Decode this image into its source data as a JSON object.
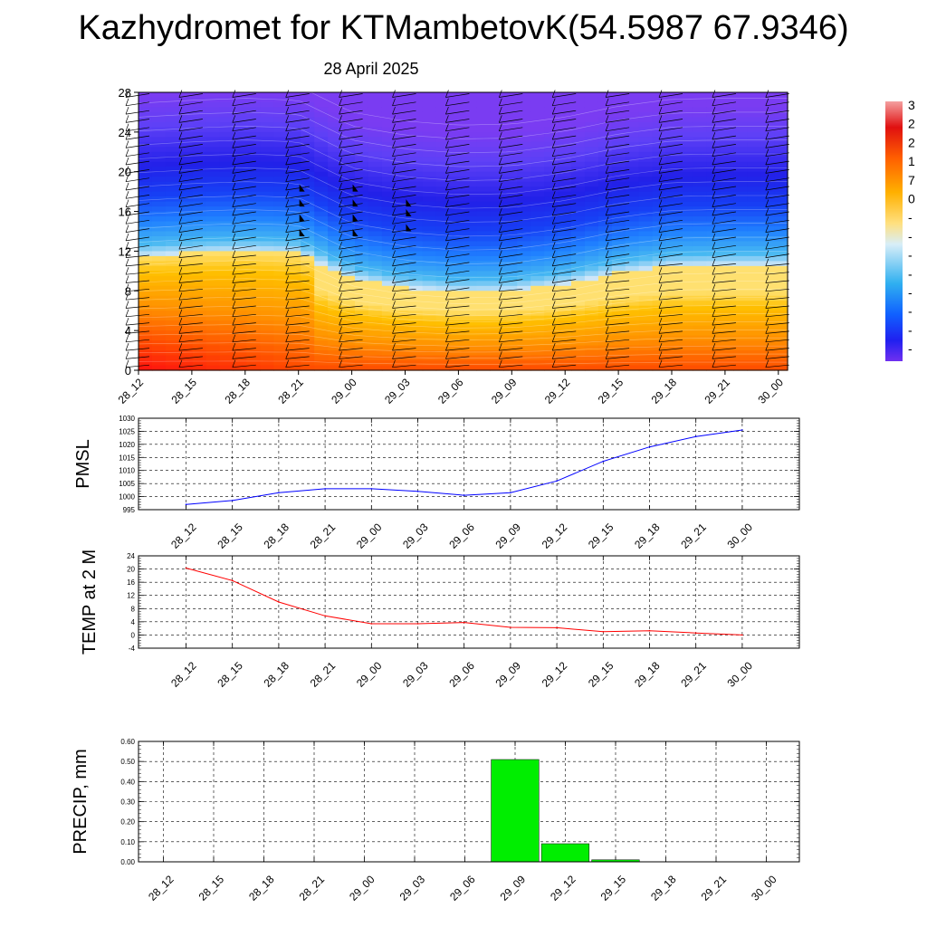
{
  "title": "Kazhydromet for KTMambetovK(54.5987 67.9346)",
  "subtitle": "28 April 2025",
  "colors": {
    "pmsl_line": "#0000ff",
    "temp_line": "#ff0000",
    "precip_bar": "#00ee00"
  },
  "chart_data": [
    {
      "type": "heatmap",
      "name": "cross-section",
      "x_tick_labels": [
        "28_12",
        "28_15",
        "28_18",
        "28_21",
        "29_00",
        "29_03",
        "29_06",
        "29_09",
        "29_12",
        "29_15",
        "29_18",
        "29_21",
        "30_00"
      ],
      "y_tick_labels": [
        "0",
        "4",
        "8",
        "12",
        "16",
        "20",
        "24",
        "28"
      ],
      "ylim": [
        0,
        28
      ],
      "freezing_level": [
        11.5,
        11.8,
        12.0,
        11.8,
        9.2,
        8.3,
        7.9,
        8.0,
        8.7,
        9.8,
        10.5,
        10.6,
        10.6
      ],
      "colorbar_labels": [
        "3",
        "2",
        "2",
        "1",
        "7",
        "0",
        "-",
        "-",
        "-",
        "-",
        "-",
        "-",
        "-",
        "-"
      ],
      "grid": false,
      "wind_barbs": true
    },
    {
      "type": "line",
      "name": "PMSL",
      "ylabel": "PMSL",
      "categories": [
        "28_12",
        "28_15",
        "28_18",
        "28_21",
        "29_00",
        "29_03",
        "29_06",
        "29_09",
        "29_12",
        "29_15",
        "29_18",
        "29_21",
        "30_00"
      ],
      "values": [
        997,
        998.5,
        1001.5,
        1003,
        1003,
        1002,
        1000.5,
        1001.5,
        1006,
        1013.5,
        1019,
        1023,
        1025.5
      ],
      "ylim": [
        995,
        1030
      ],
      "y_tick_labels": [
        "995",
        "1000",
        "1005",
        "1010",
        "1015",
        "1020",
        "1025",
        "1030"
      ],
      "grid": true
    },
    {
      "type": "line",
      "name": "TEMP at 2 M",
      "ylabel": "TEMP at 2 M",
      "categories": [
        "28_12",
        "28_15",
        "28_18",
        "28_21",
        "29_00",
        "29_03",
        "29_06",
        "29_09",
        "29_12",
        "29_15",
        "29_18",
        "29_21",
        "30_00"
      ],
      "values": [
        20.3,
        16.5,
        10,
        5.8,
        3.4,
        3.4,
        3.8,
        2.3,
        2.2,
        1,
        1.3,
        0.6,
        0
      ],
      "ylim": [
        -4,
        24
      ],
      "y_tick_labels": [
        "-4",
        "0",
        "4",
        "8",
        "12",
        "16",
        "20",
        "24"
      ],
      "grid": true
    },
    {
      "type": "bar",
      "name": "PRECIP, mm",
      "ylabel": "PRECIP, mm",
      "categories": [
        "28_12",
        "28_15",
        "28_18",
        "28_21",
        "29_00",
        "29_03",
        "29_06",
        "29_09",
        "29_12",
        "29_15",
        "29_18",
        "29_21",
        "30_00"
      ],
      "values": [
        0,
        0,
        0,
        0,
        0,
        0,
        0,
        0.51,
        0.09,
        0.01,
        0,
        0,
        0
      ],
      "ylim": [
        0,
        0.6
      ],
      "y_tick_labels": [
        "0.00",
        "0.10",
        "0.20",
        "0.30",
        "0.40",
        "0.50",
        "0.60"
      ],
      "grid": true
    }
  ]
}
